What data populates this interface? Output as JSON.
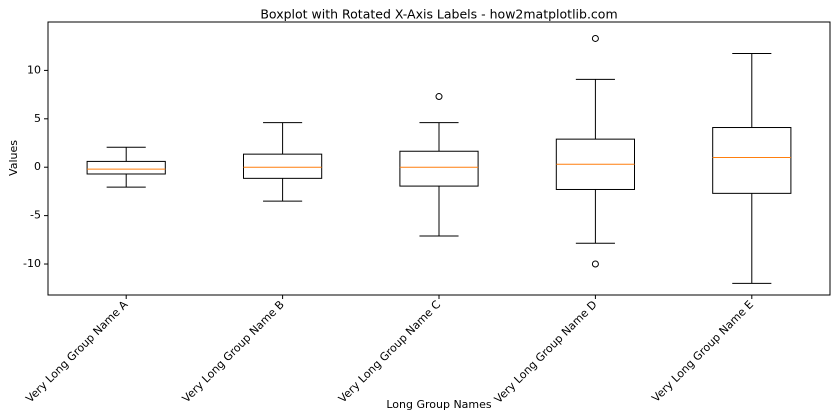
{
  "chart_data": {
    "type": "boxplot",
    "title": "Boxplot with Rotated X-Axis Labels - how2matplotlib.com",
    "x_label": "Long Group Names",
    "y_label": "Values",
    "categories": [
      "Very Long Group Name A",
      "Very Long Group Name B",
      "Very Long Group Name C",
      "Very Long Group Name D",
      "Very Long Group Name E"
    ],
    "boxes": [
      {
        "whisker_low": -2.06,
        "q1": -0.7,
        "median": -0.2,
        "q3": 0.6,
        "whisker_high": 2.06,
        "outliers": []
      },
      {
        "whisker_low": -3.5,
        "q1": -1.15,
        "median": 0,
        "q3": 1.35,
        "whisker_high": 4.6,
        "outliers": []
      },
      {
        "whisker_low": -7.1,
        "q1": -1.95,
        "median": 0,
        "q3": 1.65,
        "whisker_high": 4.6,
        "outliers": [
          7.3
        ]
      },
      {
        "whisker_low": -7.85,
        "q1": -2.3,
        "median": 0.3,
        "q3": 2.9,
        "whisker_high": 9.07,
        "outliers": [
          13.3,
          -10
        ]
      },
      {
        "whisker_low": -12.0,
        "q1": -2.7,
        "median": 1.0,
        "q3": 4.1,
        "whisker_high": 11.75,
        "outliers": []
      }
    ],
    "box_color": "#000000",
    "median_color": "#ff7f0e",
    "ylim": [
      -13.2,
      15
    ],
    "yticks": [
      -10,
      -5,
      0,
      5,
      10
    ],
    "grid": false
  }
}
